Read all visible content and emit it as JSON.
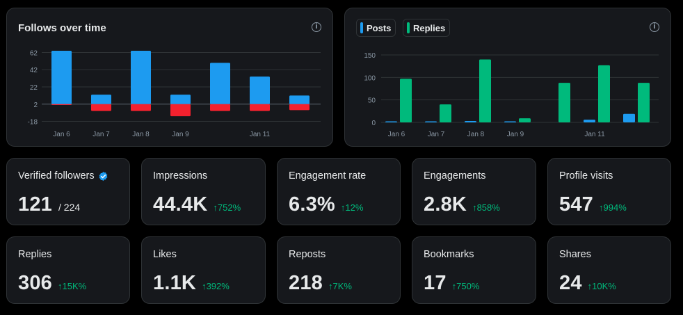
{
  "chart_data": [
    {
      "type": "bar",
      "title": "Follows over time",
      "categories": [
        "Jan 6",
        "Jan 7",
        "Jan 8",
        "Jan 9",
        "Jan 10",
        "Jan 11",
        "Jan 12"
      ],
      "x_tick_labels": [
        "Jan 6",
        "Jan 7",
        "Jan 8",
        "Jan 9",
        "",
        "Jan 11",
        ""
      ],
      "series": [
        {
          "name": "Follows",
          "color": "#1d9bf0",
          "values": [
            62,
            11,
            62,
            11,
            48,
            32,
            10
          ]
        },
        {
          "name": "Unfollows",
          "color": "#f4212e",
          "values": [
            -1,
            -8,
            -8,
            -14,
            -8,
            -8,
            -7
          ]
        }
      ],
      "yticks": [
        62,
        42,
        22,
        2,
        -18
      ],
      "ylim": [
        -20,
        64
      ],
      "baseline": 2,
      "xlabel": "",
      "ylabel": ""
    },
    {
      "type": "bar",
      "title": "",
      "categories": [
        "Jan 6",
        "Jan 7",
        "Jan 8",
        "Jan 9",
        "Jan 10",
        "Jan 11",
        "Jan 12"
      ],
      "x_tick_labels": [
        "Jan 6",
        "Jan 7",
        "Jan 8",
        "Jan 9",
        "",
        "Jan 11",
        ""
      ],
      "series": [
        {
          "name": "Posts",
          "color": "#1d9bf0",
          "values": [
            1,
            1,
            3,
            1,
            0,
            6,
            19
          ]
        },
        {
          "name": "Replies",
          "color": "#00ba7c",
          "values": [
            97,
            40,
            140,
            9,
            88,
            127,
            88
          ]
        }
      ],
      "yticks": [
        150,
        100,
        50,
        0
      ],
      "ylim": [
        0,
        150
      ],
      "xlabel": "",
      "ylabel": ""
    }
  ],
  "follows_card": {
    "title": "Follows over time",
    "info_icon": "info-icon"
  },
  "activity_card": {
    "legend": [
      {
        "label": "Posts",
        "color": "#1d9bf0"
      },
      {
        "label": "Replies",
        "color": "#00ba7c"
      }
    ]
  },
  "stats": [
    {
      "label": "Verified followers",
      "value": "121",
      "sub": "/ 224",
      "verified": true
    },
    {
      "label": "Impressions",
      "value": "44.4K",
      "delta": "↑752%"
    },
    {
      "label": "Engagement rate",
      "value": "6.3%",
      "delta": "↑12%"
    },
    {
      "label": "Engagements",
      "value": "2.8K",
      "delta": "↑858%"
    },
    {
      "label": "Profile visits",
      "value": "547",
      "delta": "↑994%"
    },
    {
      "label": "Replies",
      "value": "306",
      "delta": "↑15K%"
    },
    {
      "label": "Likes",
      "value": "1.1K",
      "delta": "↑392%"
    },
    {
      "label": "Reposts",
      "value": "218",
      "delta": "↑7K%"
    },
    {
      "label": "Bookmarks",
      "value": "17",
      "delta": "↑750%"
    },
    {
      "label": "Shares",
      "value": "24",
      "delta": "↑10K%"
    }
  ],
  "colors": {
    "accent_green": "#00ba7c",
    "accent_blue": "#1d9bf0",
    "negative_red": "#f4212e"
  }
}
